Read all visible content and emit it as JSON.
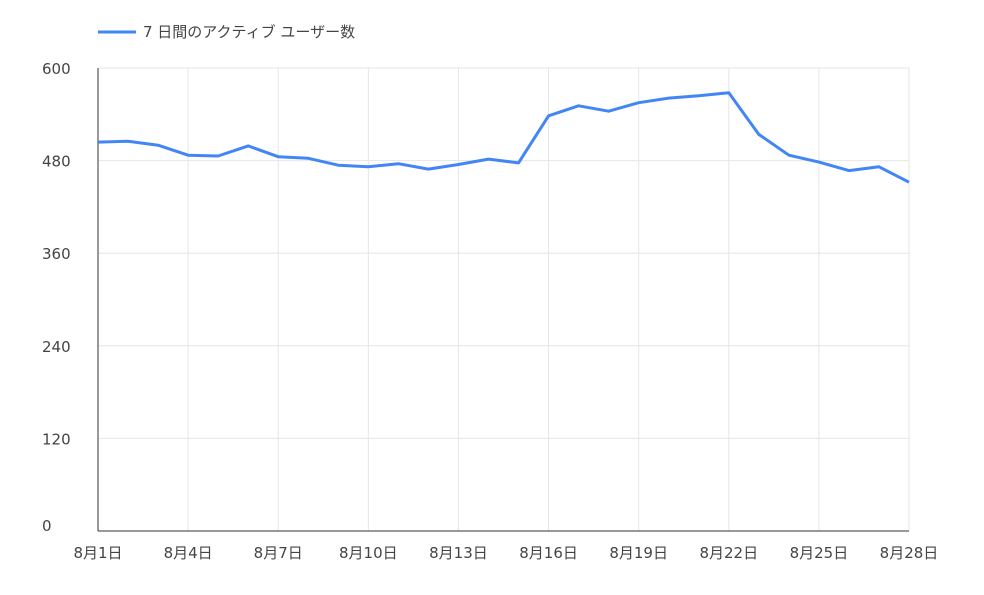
{
  "chart_data": {
    "type": "line",
    "series": [
      {
        "name": "7 日間のアクティブ ユーザー数",
        "color": "#4285f4",
        "values": [
          504,
          505,
          500,
          487,
          486,
          499,
          485,
          483,
          474,
          472,
          476,
          469,
          475,
          482,
          477,
          538,
          551,
          544,
          555,
          561,
          564,
          568,
          514,
          487,
          478,
          467,
          472,
          452
        ]
      }
    ],
    "categories": [
      "8月1日",
      null,
      null,
      "8月4日",
      null,
      null,
      "8月7日",
      null,
      null,
      "8月10日",
      null,
      null,
      "8月13日",
      null,
      null,
      "8月16日",
      null,
      null,
      "8月19日",
      null,
      null,
      "8月22日",
      null,
      null,
      "8月25日",
      null,
      null,
      "8月28日"
    ],
    "ylim": [
      0,
      600
    ],
    "yticks": [
      0,
      120,
      240,
      360,
      480,
      600
    ],
    "grid": true,
    "legend": "top-left"
  }
}
